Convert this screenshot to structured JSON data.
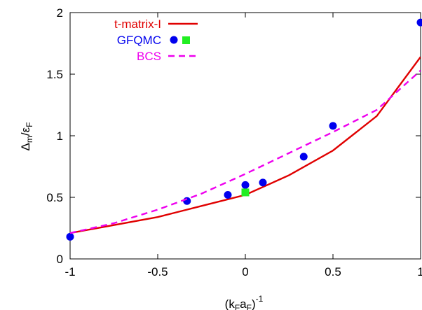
{
  "chart_data": {
    "type": "line",
    "xlabel": {
      "main": "(k",
      "sub1": "F",
      "mid": "a",
      "sub2": "F",
      "close": ")",
      "sup": "-1"
    },
    "ylabel": {
      "main": "Δ",
      "sub1": "m",
      "slash": "/ε",
      "sub2": "F"
    },
    "xlim": [
      -1,
      1
    ],
    "ylim": [
      0,
      2
    ],
    "xticks": [
      {
        "value": -1,
        "label": "-1"
      },
      {
        "value": -0.5,
        "label": "-0.5"
      },
      {
        "value": 0,
        "label": "0"
      },
      {
        "value": 0.5,
        "label": "0.5"
      },
      {
        "value": 1,
        "label": "1"
      }
    ],
    "yticks": [
      {
        "value": 0,
        "label": "0"
      },
      {
        "value": 0.5,
        "label": "0.5"
      },
      {
        "value": 1,
        "label": "1"
      },
      {
        "value": 1.5,
        "label": "1.5"
      },
      {
        "value": 2,
        "label": "2"
      }
    ],
    "grid": false,
    "legend_position": "top-left",
    "series": [
      {
        "name": "t-matrix-I",
        "style": "line",
        "color": "#e00000",
        "x": [
          -1.0,
          -0.5,
          -0.25,
          0.0,
          0.25,
          0.5,
          0.75,
          1.0
        ],
        "y": [
          0.21,
          0.34,
          0.43,
          0.52,
          0.68,
          0.88,
          1.16,
          1.64
        ]
      },
      {
        "name": "GFQMC",
        "style": "points",
        "marker": "circle",
        "color": "#0000ee",
        "x": [
          -1.0,
          -0.333,
          -0.1,
          0.0,
          0.1,
          0.333,
          0.5,
          1.0
        ],
        "y": [
          0.18,
          0.47,
          0.52,
          0.6,
          0.62,
          0.83,
          1.08,
          1.92
        ]
      },
      {
        "name": "",
        "style": "points",
        "marker": "square",
        "color": "#22ee22",
        "x": [
          0.0
        ],
        "y": [
          0.54
        ]
      },
      {
        "name": "BCS",
        "style": "dashed",
        "color": "#ee00ee",
        "x": [
          -1.0,
          -0.75,
          -0.5,
          -0.25,
          0.0,
          0.25,
          0.5,
          0.75,
          1.0
        ],
        "y": [
          0.21,
          0.29,
          0.4,
          0.53,
          0.69,
          0.86,
          1.03,
          1.21,
          1.53
        ]
      }
    ]
  }
}
